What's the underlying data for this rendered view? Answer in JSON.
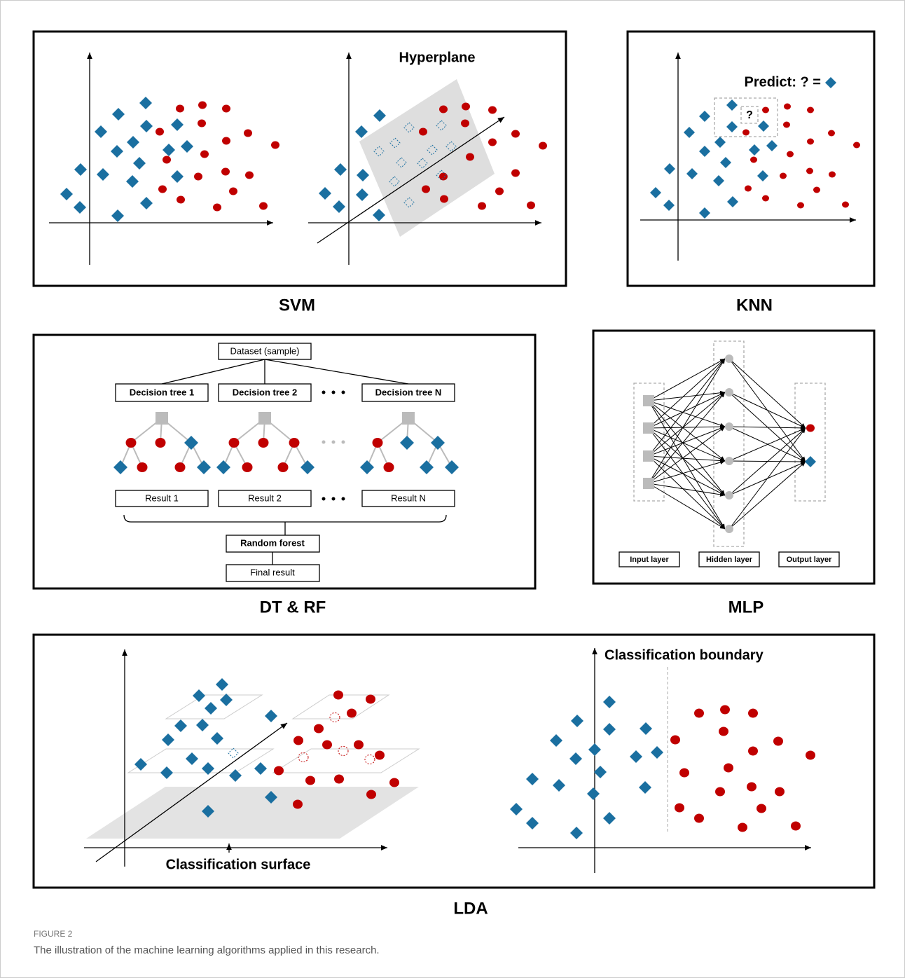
{
  "svm": {
    "hyperplane": "Hyperplane",
    "label": "SVM"
  },
  "knn": {
    "predict": "Predict: ? =",
    "query": "?",
    "label": "KNN"
  },
  "dtrf": {
    "dataset": "Dataset (sample)",
    "trees": [
      "Decision tree 1",
      "Decision tree 2",
      "Decision tree N"
    ],
    "results": [
      "Result 1",
      "Result 2",
      "Result N"
    ],
    "random_forest": "Random forest",
    "final_result": "Final result",
    "label": "DT & RF"
  },
  "mlp": {
    "layers": [
      "Input layer",
      "Hidden layer",
      "Output layer"
    ],
    "label": "MLP"
  },
  "lda": {
    "boundary": "Classification boundary",
    "surface": "Classification surface",
    "label": "LDA"
  },
  "caption": {
    "figure": "FIGURE 2",
    "text": "The illustration of the machine learning algorithms applied in this research."
  }
}
